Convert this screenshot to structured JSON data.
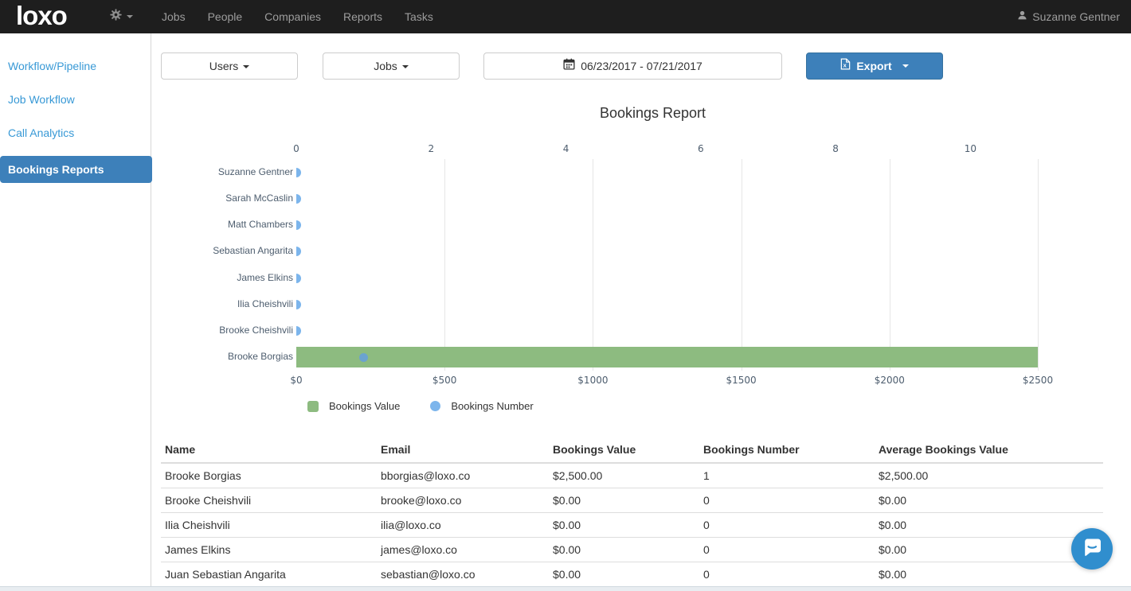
{
  "navbar": {
    "logo": "loxo",
    "items": [
      "Jobs",
      "People",
      "Companies",
      "Reports",
      "Tasks"
    ],
    "user": "Suzanne Gentner"
  },
  "sidebar": {
    "items": [
      {
        "label": "Workflow/Pipeline",
        "active": false
      },
      {
        "label": "Job Workflow",
        "active": false
      },
      {
        "label": "Call Analytics",
        "active": false
      },
      {
        "label": "Bookings Reports",
        "active": true
      }
    ]
  },
  "filters": {
    "users_label": "Users",
    "jobs_label": "Jobs",
    "date_range": "06/23/2017 - 07/21/2017",
    "export_label": "Export"
  },
  "chart_data": {
    "type": "bar",
    "orientation": "horizontal",
    "title": "Bookings Report",
    "categories": [
      "Suzanne Gentner",
      "Sarah McCaslin",
      "Matt Chambers",
      "Sebastian Angarita",
      "James Elkins",
      "Ilia Cheishvili",
      "Brooke Cheishvili",
      "Brooke Borgias"
    ],
    "series": [
      {
        "name": "Bookings Value",
        "type": "bar",
        "axis": "bottom",
        "color": "#8dbb80",
        "values": [
          0,
          0,
          0,
          0,
          0,
          0,
          0,
          2500
        ]
      },
      {
        "name": "Bookings Number",
        "type": "scatter",
        "axis": "top",
        "color": "#7cb5ec",
        "values": [
          0,
          0,
          0,
          0,
          0,
          0,
          0,
          1
        ]
      }
    ],
    "top_axis": {
      "tick_labels": [
        "0",
        "2",
        "4",
        "6",
        "8",
        "10"
      ],
      "tick_values": [
        0,
        2,
        4,
        6,
        8,
        10
      ],
      "min": 0,
      "max": 11
    },
    "bottom_axis": {
      "tick_labels": [
        "$0",
        "$500",
        "$1000",
        "$1500",
        "$2000",
        "$2500"
      ],
      "tick_values": [
        0,
        500,
        1000,
        1500,
        2000,
        2500
      ],
      "min": 0,
      "max": 2500
    },
    "grid": "vertical-on-bottom-axis",
    "legend_position": "bottom"
  },
  "table": {
    "columns": [
      "Name",
      "Email",
      "Bookings Value",
      "Bookings Number",
      "Average Bookings Value"
    ],
    "rows": [
      [
        "Brooke Borgias",
        "bborgias@loxo.co",
        "$2,500.00",
        "1",
        "$2,500.00"
      ],
      [
        "Brooke Cheishvili",
        "brooke@loxo.co",
        "$0.00",
        "0",
        "$0.00"
      ],
      [
        "Ilia Cheishvili",
        "ilia@loxo.co",
        "$0.00",
        "0",
        "$0.00"
      ],
      [
        "James Elkins",
        "james@loxo.co",
        "$0.00",
        "0",
        "$0.00"
      ],
      [
        "Juan Sebastian Angarita",
        "sebastian@loxo.co",
        "$0.00",
        "0",
        "$0.00"
      ]
    ]
  },
  "colors": {
    "navbar_bg": "#1e1e1e",
    "accent_blue": "#3d80ba",
    "link_blue": "#3899d6",
    "bar_green": "#8dbb80",
    "marker_blue": "#7cb5ec",
    "intercom_blue": "#308ece",
    "gridline": "#e6e6e6"
  }
}
